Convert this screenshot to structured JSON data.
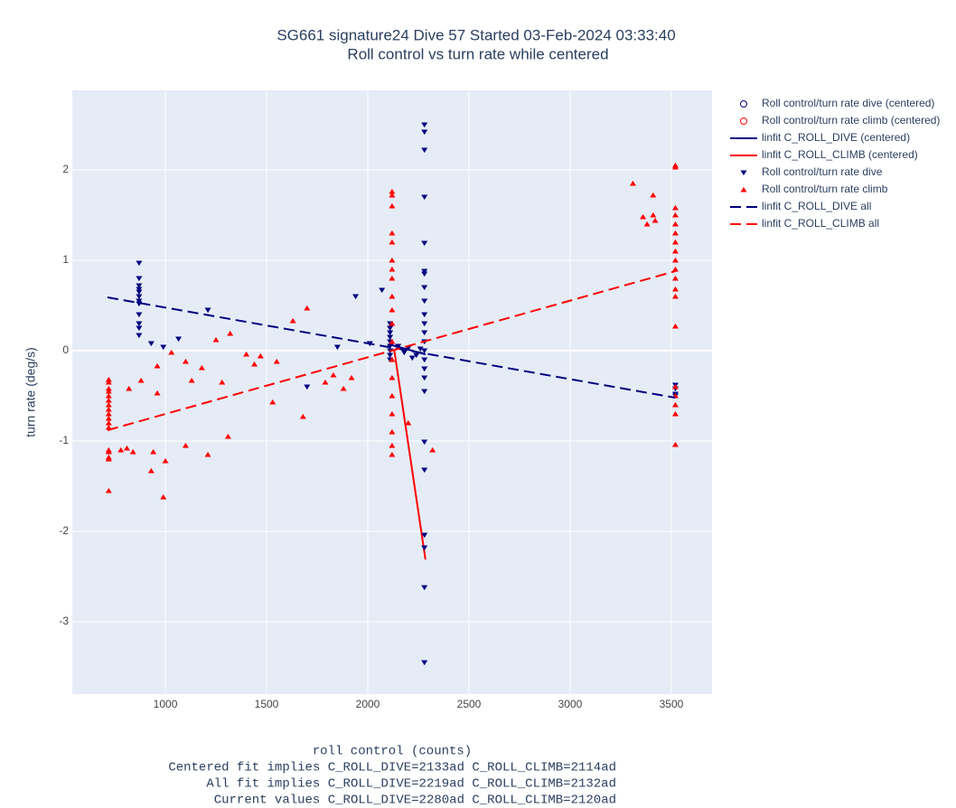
{
  "chart_data": {
    "type": "scatter",
    "title": "SG661 signature24 Dive 57 Started 03-Feb-2024 03:33:40",
    "subtitle": "Roll control vs turn rate while centered",
    "xlabel": "roll control (counts)",
    "ylabel": "turn rate (deg/s)",
    "annotations": [
      "Centered fit implies C_ROLL_DIVE=2133ad C_ROLL_CLIMB=2114ad",
      "All fit implies C_ROLL_DIVE=2219ad C_ROLL_CLIMB=2132ad",
      "Current values C_ROLL_DIVE=2280ad C_ROLL_CLIMB=2120ad"
    ],
    "xlim": [
      540,
      3701
    ],
    "ylim": [
      -3.8,
      2.88
    ],
    "xticks": [
      1000,
      1500,
      2000,
      2500,
      3000,
      3500
    ],
    "yticks": [
      -3,
      -2,
      -1,
      0,
      1,
      2
    ],
    "grid": true,
    "legend": "outside-right",
    "series": [
      {
        "name": "Roll control/turn rate dive (centered)",
        "color": "#000080",
        "mode": "markers",
        "symbol": "circle-open",
        "x": [],
        "values": []
      },
      {
        "name": "Roll control/turn rate climb (centered)",
        "color": "#ff0000",
        "mode": "markers",
        "symbol": "circle-open",
        "x": [],
        "values": []
      },
      {
        "name": "linfit C_ROLL_DIVE (centered)",
        "color": "#000080",
        "mode": "lines",
        "dash": "solid",
        "x": [
          2105,
          2285
        ],
        "values": [
          0.07,
          -0.04
        ]
      },
      {
        "name": "linfit C_ROLL_CLIMB (centered)",
        "color": "#ff0000",
        "mode": "lines",
        "dash": "solid",
        "x": [
          2130,
          2285
        ],
        "values": [
          0.02,
          -2.31
        ]
      },
      {
        "name": "Roll control/turn rate dive",
        "color": "#000080",
        "mode": "markers",
        "symbol": "triangle-down",
        "x": [
          870,
          870,
          870,
          870,
          870,
          870,
          870,
          870,
          870,
          870,
          870,
          870,
          930,
          990,
          1065,
          1210,
          1700,
          1850,
          1940,
          2010,
          2070,
          2110,
          2110,
          2110,
          2110,
          2110,
          2110,
          2110,
          2110,
          2110,
          2150,
          2180,
          2200,
          2220,
          2240,
          2260,
          2280,
          2280,
          2280,
          2280,
          2280,
          2280,
          2280,
          2280,
          2280,
          2280,
          2280,
          2280,
          2280,
          2280,
          2280,
          2280,
          2280,
          2280,
          2280,
          2280,
          2280,
          2280,
          2280,
          2280,
          3520,
          3520,
          3520,
          3520
        ],
        "values": [
          0.97,
          0.8,
          0.72,
          0.68,
          0.65,
          0.6,
          0.55,
          0.52,
          0.4,
          0.3,
          0.25,
          0.17,
          0.08,
          0.04,
          0.13,
          0.45,
          -0.4,
          0.04,
          0.6,
          0.08,
          0.67,
          0.3,
          0.25,
          0.2,
          0.15,
          0.1,
          0.05,
          0,
          -0.05,
          -0.1,
          0.05,
          -0.02,
          0.03,
          -0.08,
          -0.05,
          0.02,
          2.5,
          2.42,
          2.22,
          1.7,
          1.19,
          0.88,
          0.85,
          0.7,
          0.55,
          0.4,
          0.3,
          0.2,
          0.1,
          0,
          -0.1,
          -0.2,
          -0.3,
          -0.45,
          -1.01,
          -1.32,
          -2.04,
          -2.18,
          -2.62,
          -3.45,
          -0.38,
          -0.42,
          -0.48,
          -0.5
        ]
      },
      {
        "name": "Roll control/turn rate climb",
        "color": "#ff0000",
        "mode": "markers",
        "symbol": "triangle-up",
        "x": [
          720,
          720,
          720,
          720,
          720,
          720,
          720,
          720,
          720,
          720,
          720,
          720,
          720,
          720,
          720,
          720,
          720,
          780,
          810,
          840,
          820,
          880,
          930,
          940,
          960,
          960,
          990,
          1000,
          1030,
          1100,
          1100,
          1130,
          1180,
          1210,
          1250,
          1280,
          1310,
          1320,
          1400,
          1440,
          1470,
          1530,
          1550,
          1630,
          1680,
          1700,
          1790,
          1830,
          1880,
          1920,
          2120,
          2120,
          2120,
          2120,
          2120,
          2120,
          2120,
          2120,
          2120,
          2120,
          2120,
          2120,
          2120,
          2120,
          2120,
          2120,
          2120,
          2120,
          2120,
          2200,
          2320,
          3310,
          3360,
          3380,
          3410,
          3410,
          3420,
          3520,
          3520,
          3520,
          3520,
          3520,
          3520,
          3520,
          3520,
          3520,
          3520,
          3520,
          3520,
          3520,
          3520,
          3520,
          3520,
          3520,
          3520,
          3520
        ],
        "values": [
          -0.32,
          -0.35,
          -0.42,
          -0.45,
          -0.5,
          -0.55,
          -0.6,
          -0.65,
          -0.7,
          -0.75,
          -0.8,
          -0.85,
          -1.1,
          -1.12,
          -1.18,
          -1.2,
          -1.55,
          -1.1,
          -1.08,
          -1.12,
          -0.42,
          -0.33,
          -1.33,
          -1.12,
          -0.47,
          -0.17,
          -1.62,
          -1.22,
          -0.02,
          -1.05,
          -0.12,
          -0.33,
          -0.19,
          -1.15,
          0.12,
          -0.35,
          -0.95,
          0.19,
          -0.04,
          -0.15,
          -0.06,
          -0.57,
          -0.12,
          0.33,
          -0.73,
          0.47,
          -0.35,
          -0.27,
          -0.42,
          -0.3,
          1.76,
          1.72,
          1.6,
          1.3,
          1.2,
          1.0,
          0.9,
          0.8,
          0.6,
          0.45,
          0.3,
          0.1,
          -0.1,
          -0.3,
          -0.5,
          -0.7,
          -0.9,
          -1.05,
          -1.15,
          -0.8,
          -1.1,
          1.85,
          1.48,
          1.4,
          1.72,
          1.5,
          1.44,
          2.05,
          2.03,
          1.58,
          1.5,
          1.4,
          1.3,
          1.2,
          1.1,
          1.0,
          0.9,
          0.8,
          0.68,
          0.6,
          0.27,
          -0.4,
          -0.5,
          -0.6,
          -0.7,
          -1.04
        ]
      },
      {
        "name": "linfit C_ROLL_DIVE all",
        "color": "#000080",
        "mode": "lines",
        "dash": "dash",
        "x": [
          714,
          3518
        ],
        "values": [
          0.59,
          -0.52
        ]
      },
      {
        "name": "linfit C_ROLL_CLIMB all",
        "color": "#ff0000",
        "mode": "lines",
        "dash": "dash",
        "x": [
          714,
          3520
        ],
        "values": [
          -0.88,
          0.88
        ]
      }
    ]
  }
}
